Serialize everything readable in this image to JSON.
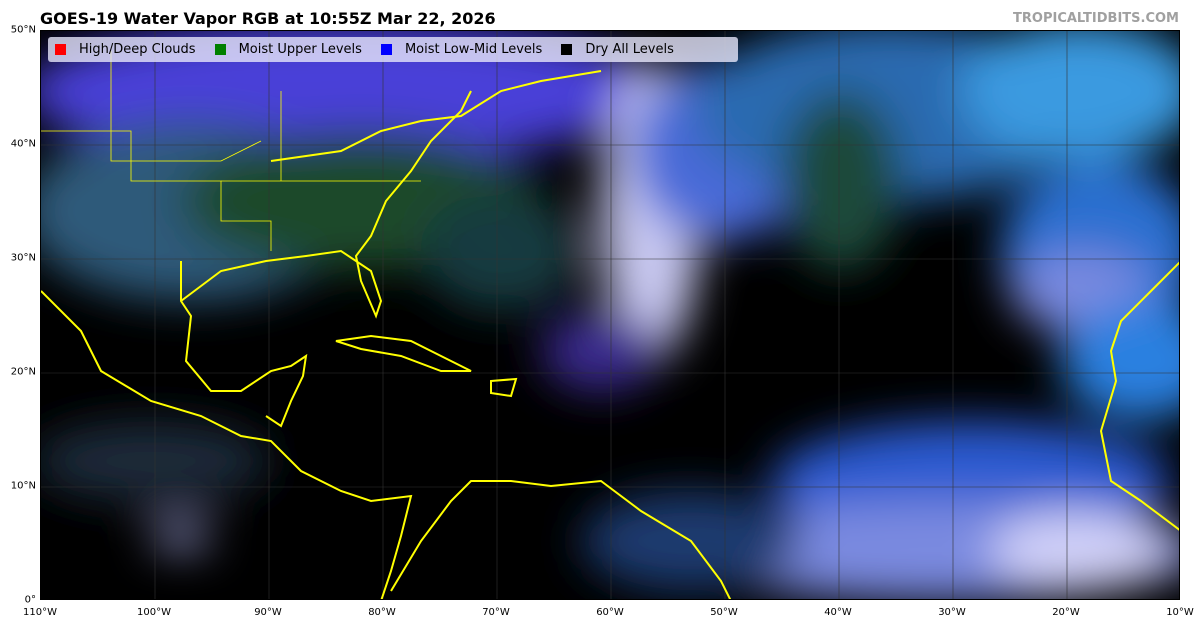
{
  "title": "GOES-19 Water Vapor RGB at 10:55Z Mar 22, 2026",
  "credit": "TROPICALTIDBITS.COM",
  "legend": [
    {
      "label": "High/Deep Clouds",
      "color": "#ff0000"
    },
    {
      "label": "Moist Upper Levels",
      "color": "#008000"
    },
    {
      "label": "Moist Low-Mid Levels",
      "color": "#0000ff"
    },
    {
      "label": "Dry All Levels",
      "color": "#000000"
    }
  ],
  "x_ticks": [
    "110°W",
    "100°W",
    "90°W",
    "80°W",
    "70°W",
    "60°W",
    "50°W",
    "40°W",
    "30°W",
    "20°W",
    "10°W"
  ],
  "y_ticks": [
    "0°",
    "10°N",
    "20°N",
    "30°N",
    "40°N",
    "50°N"
  ],
  "colors": {
    "coastline": "#ffff00",
    "grid": "#333333"
  }
}
